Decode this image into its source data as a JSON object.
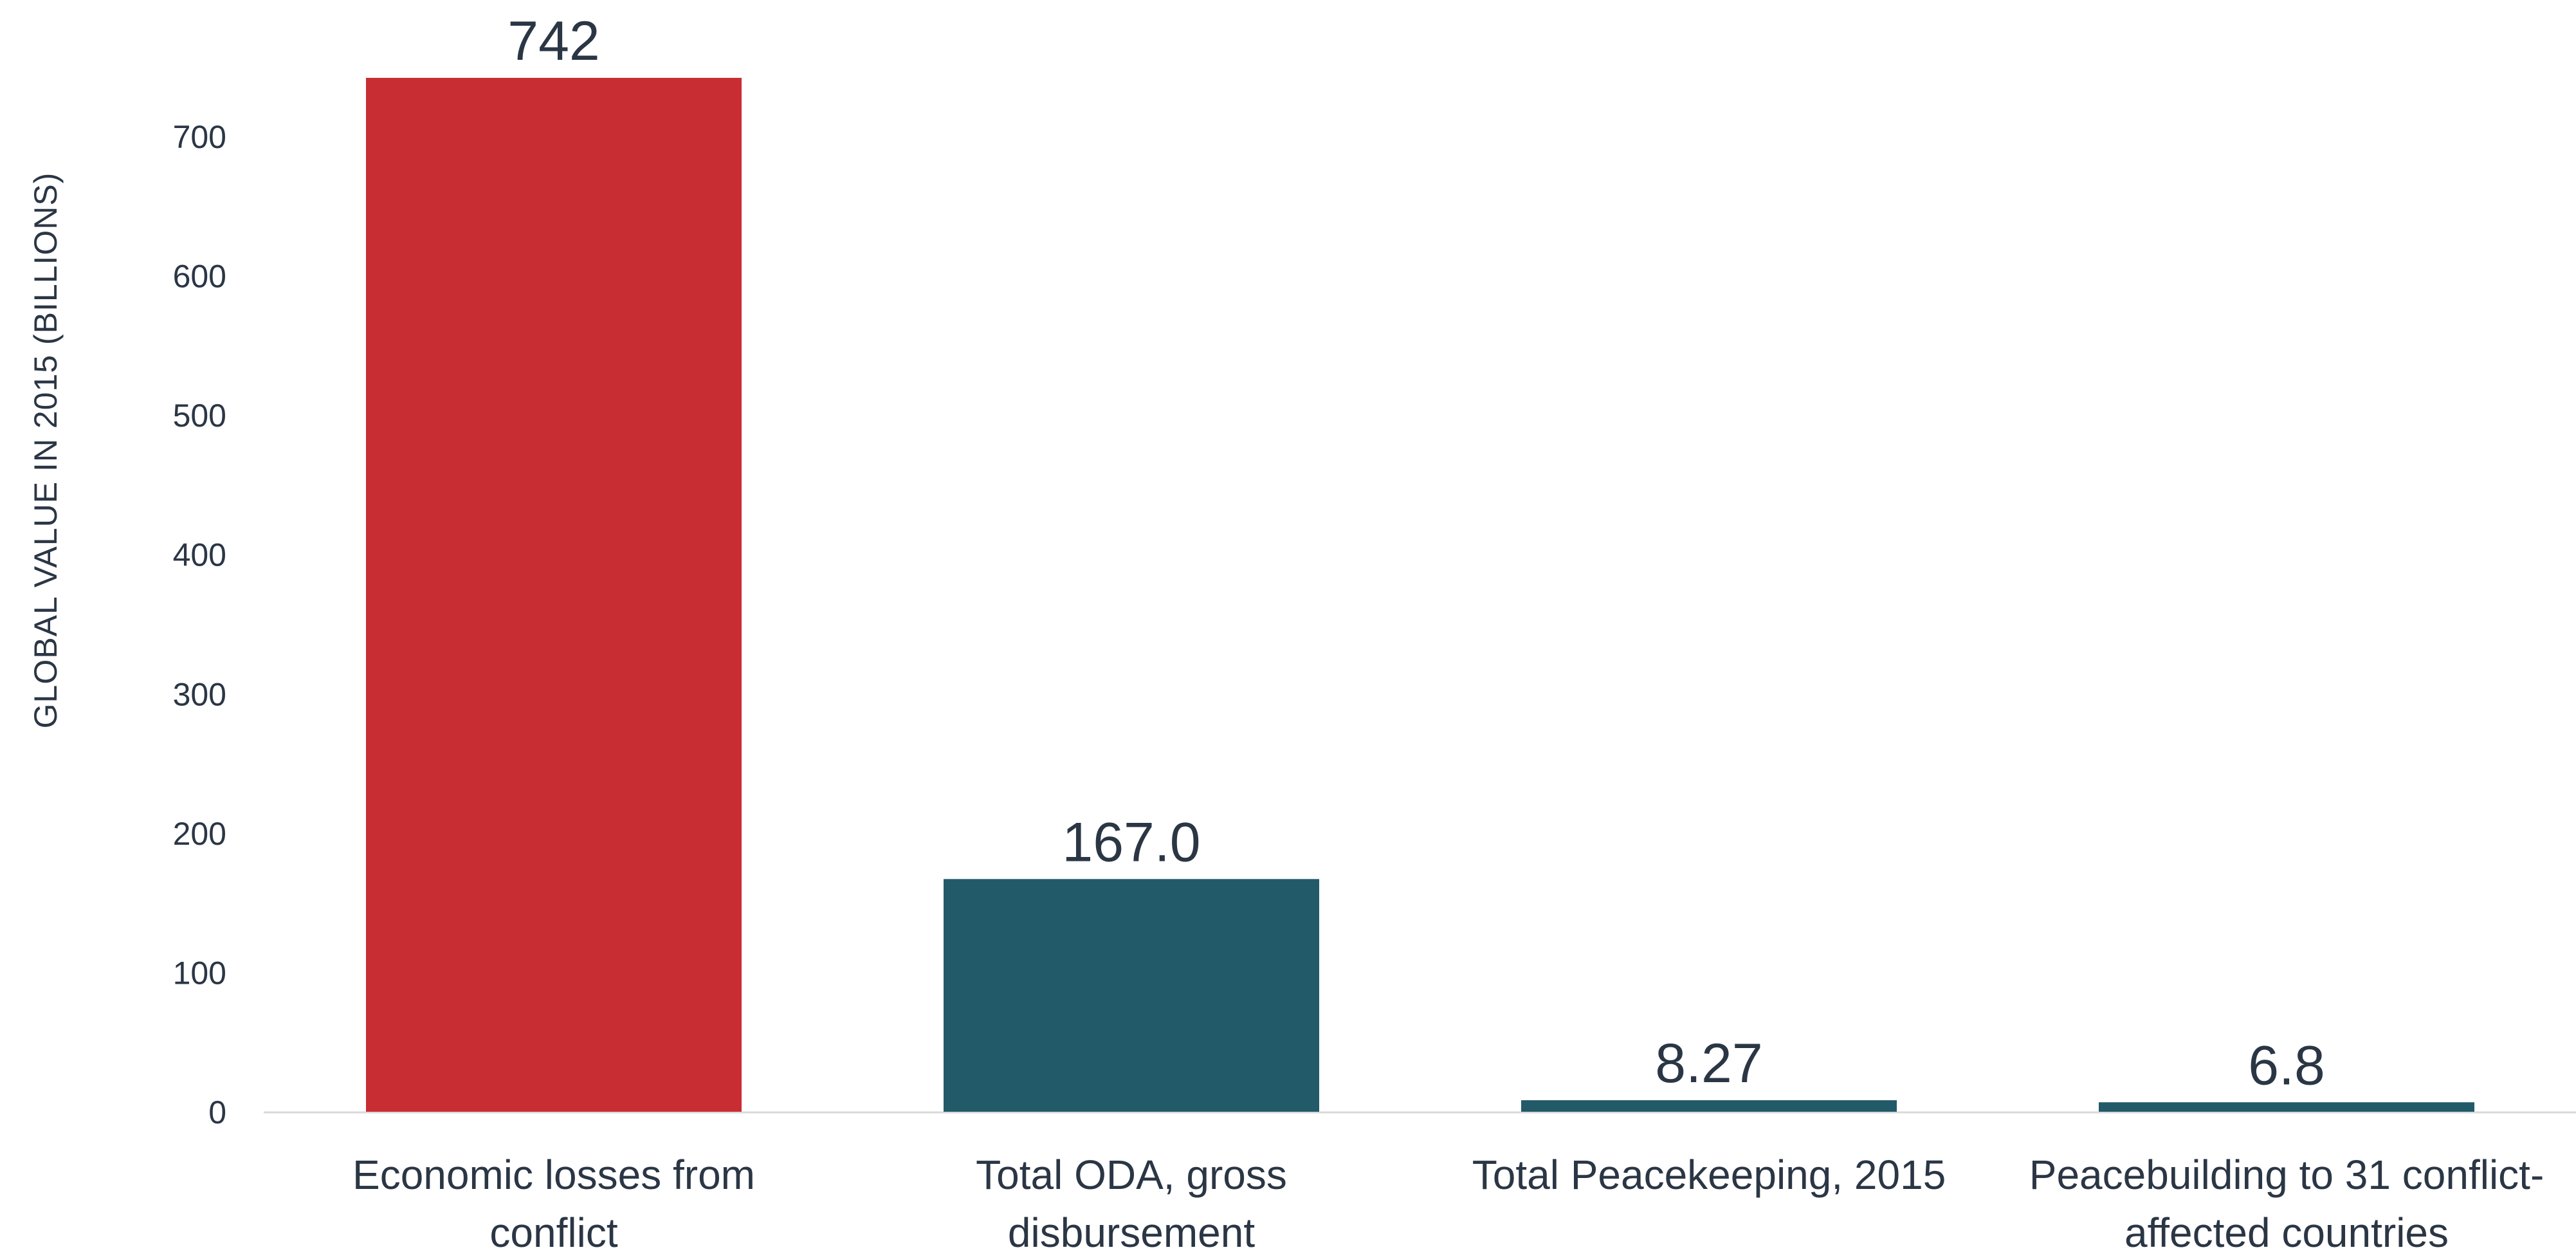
{
  "chart_data": {
    "type": "bar",
    "categories": [
      [
        "Economic losses from",
        "conflict"
      ],
      [
        "Total ODA, gross",
        "disbursement"
      ],
      [
        "Total Peacekeeping, 2015"
      ],
      [
        "Peacebuilding to 31 conflict-",
        "affected countries"
      ]
    ],
    "values": [
      742,
      167.0,
      8.27,
      6.8
    ],
    "value_labels": [
      "742",
      "167.0",
      "8.27",
      "6.8"
    ],
    "bar_colors": [
      "#c82d33",
      "#225a69",
      "#225a69",
      "#225a69"
    ],
    "xlabel": "",
    "ylabel": "GLOBAL VALUE IN 2015 (BILLIONS)",
    "ylim": [
      0,
      742
    ],
    "yticks": [
      0,
      100,
      200,
      300,
      400,
      500,
      600,
      700
    ],
    "grid": false,
    "legend": "none"
  },
  "colors": {
    "text": "#2b3645",
    "axis_line": "#d9d9d9"
  }
}
